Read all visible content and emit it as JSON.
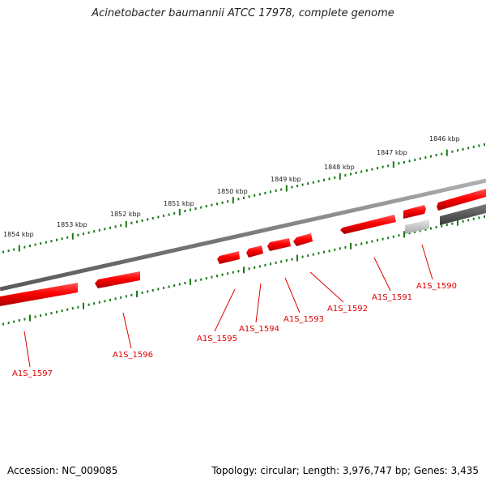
{
  "title": "Acinetobacter baumannii ATCC 17978, complete genome",
  "footer": {
    "accession": "Accession: NC_009085",
    "summary": "Topology: circular; Length: 3,976,747 bp; Genes: 3,435"
  },
  "colors": {
    "forward_gene": "#ff0000",
    "reverse_gene": "#ff0000",
    "pseudo_gene_light": "#c8c8c8",
    "pseudo_gene_dark": "#555555",
    "backbone": "#808080",
    "tick": "#1a7a1a",
    "label": "#e00000"
  },
  "scale": {
    "labels": [
      "1854 kbp",
      "1853 kbp",
      "1852 kbp",
      "1851 kbp",
      "1850 kbp",
      "1849 kbp",
      "1848 kbp",
      "1847 kbp",
      "1846 kbp"
    ]
  },
  "genes": [
    {
      "id": "A1S_1597",
      "label": "A1S_1597",
      "strand": "reverse"
    },
    {
      "id": "A1S_1596",
      "label": "A1S_1596",
      "strand": "reverse"
    },
    {
      "id": "A1S_1595",
      "label": "A1S_1595",
      "strand": "reverse"
    },
    {
      "id": "A1S_1594",
      "label": "A1S_1594",
      "strand": "reverse"
    },
    {
      "id": "A1S_1593",
      "label": "A1S_1593",
      "strand": "reverse"
    },
    {
      "id": "A1S_1592",
      "label": "A1S_1592",
      "strand": "reverse"
    },
    {
      "id": "A1S_1591",
      "label": "A1S_1591",
      "strand": "reverse"
    },
    {
      "id": "A1S_1590",
      "label": "A1S_1590",
      "strand": "reverse"
    }
  ]
}
